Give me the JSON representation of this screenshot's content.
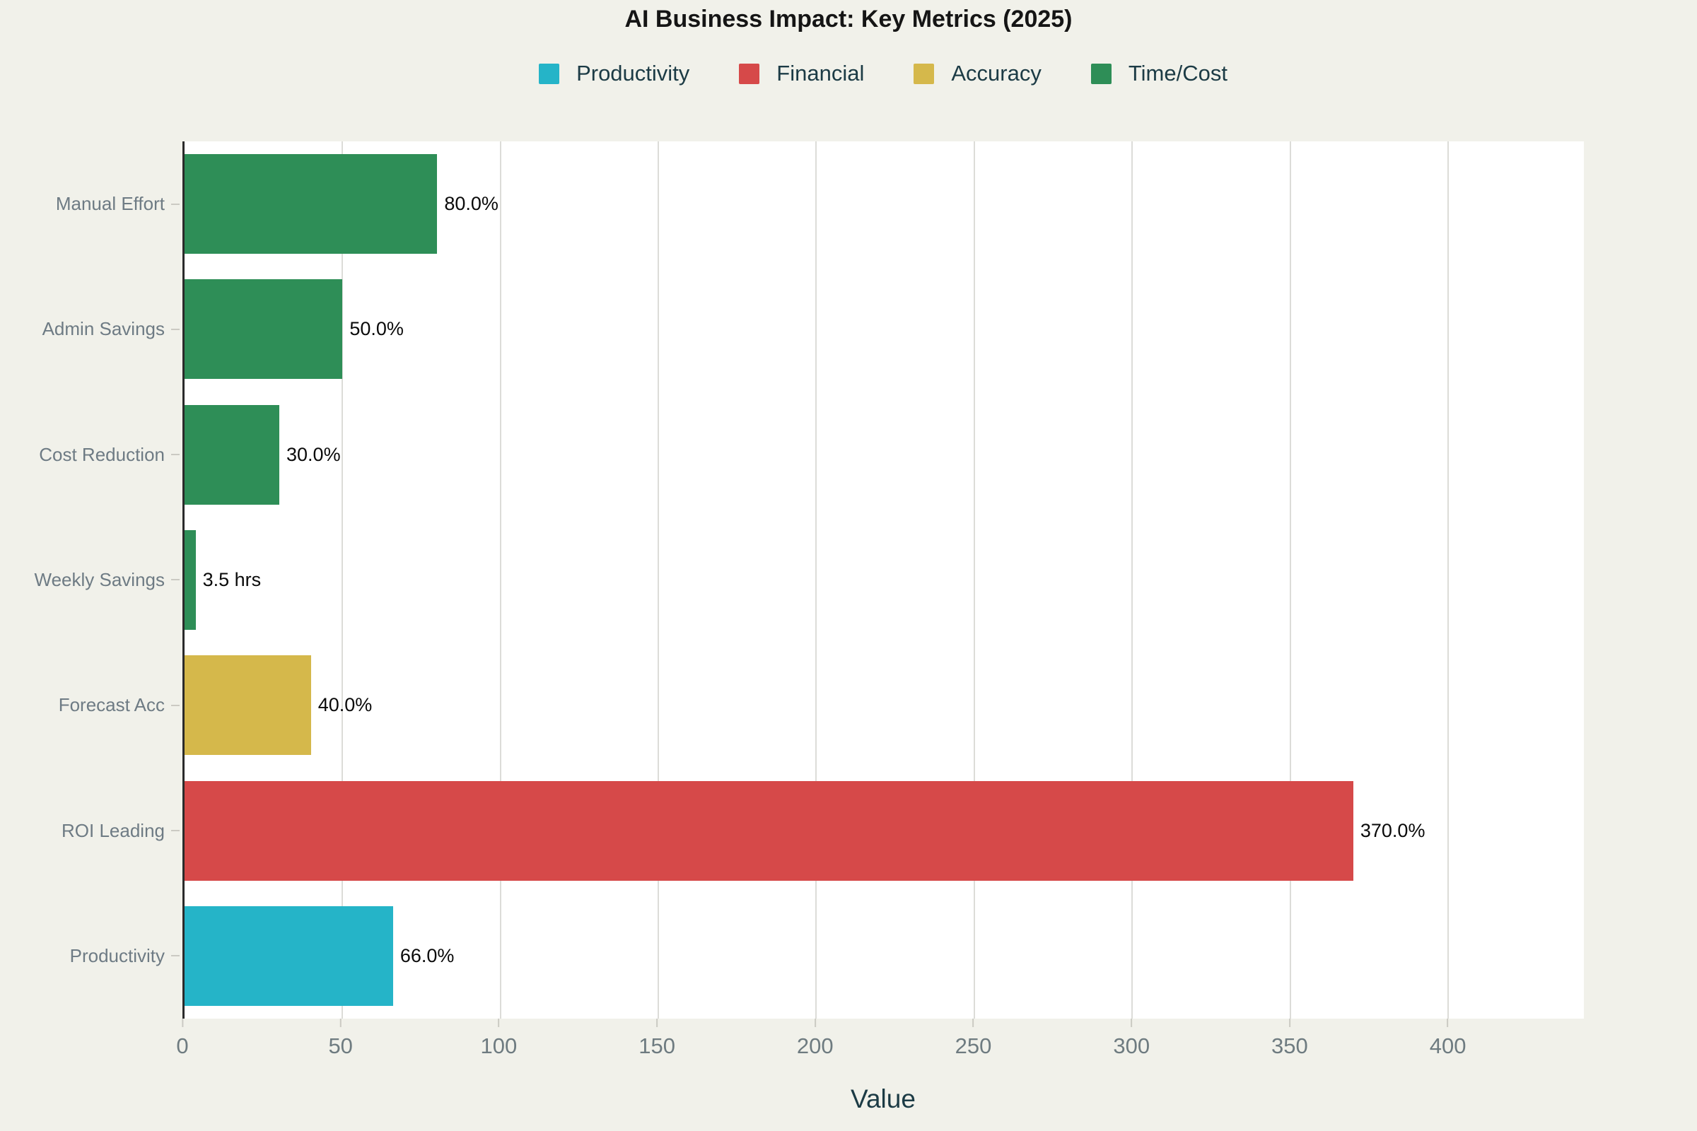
{
  "colors": {
    "background": "#f1f1ea",
    "plot_background": "#ffffff",
    "gridline": "#dcdcd8",
    "spine": "#2b2b2b",
    "tick_mark": "#cbcac3",
    "title_text": "#151515",
    "legend_text": "#1c3b45",
    "category_text": "#6e7b84",
    "tick_text": "#6e7b80",
    "value_text": "#0a0a0a",
    "productivity": "#25b4c8",
    "financial": "#d64949",
    "accuracy": "#d5b84b",
    "time_cost": "#2e8e57"
  },
  "chart_data": {
    "type": "bar",
    "orientation": "horizontal",
    "title": "AI Business Impact: Key Metrics (2025)",
    "xlabel": "Value",
    "ylabel": "",
    "xlim": [
      0,
      443
    ],
    "xticks": [
      0,
      50,
      100,
      150,
      200,
      250,
      300,
      350,
      400
    ],
    "grid": true,
    "legend_position": "top-center",
    "legend": [
      {
        "label": "Productivity",
        "color": "#25b4c8"
      },
      {
        "label": "Financial",
        "color": "#d64949"
      },
      {
        "label": "Accuracy",
        "color": "#d5b84b"
      },
      {
        "label": "Time/Cost",
        "color": "#2e8e57"
      }
    ],
    "bars": [
      {
        "category": "Manual Effort",
        "value": 80,
        "label": "80.0%",
        "series": "Time/Cost"
      },
      {
        "category": "Admin Savings",
        "value": 50,
        "label": "50.0%",
        "series": "Time/Cost"
      },
      {
        "category": "Cost Reduction",
        "value": 30,
        "label": "30.0%",
        "series": "Time/Cost"
      },
      {
        "category": "Weekly Savings",
        "value": 3.5,
        "label": "3.5 hrs",
        "series": "Time/Cost"
      },
      {
        "category": "Forecast Acc",
        "value": 40,
        "label": "40.0%",
        "series": "Accuracy"
      },
      {
        "category": "ROI Leading",
        "value": 370,
        "label": "370.0%",
        "series": "Financial"
      },
      {
        "category": "Productivity",
        "value": 66,
        "label": "66.0%",
        "series": "Productivity"
      }
    ]
  }
}
